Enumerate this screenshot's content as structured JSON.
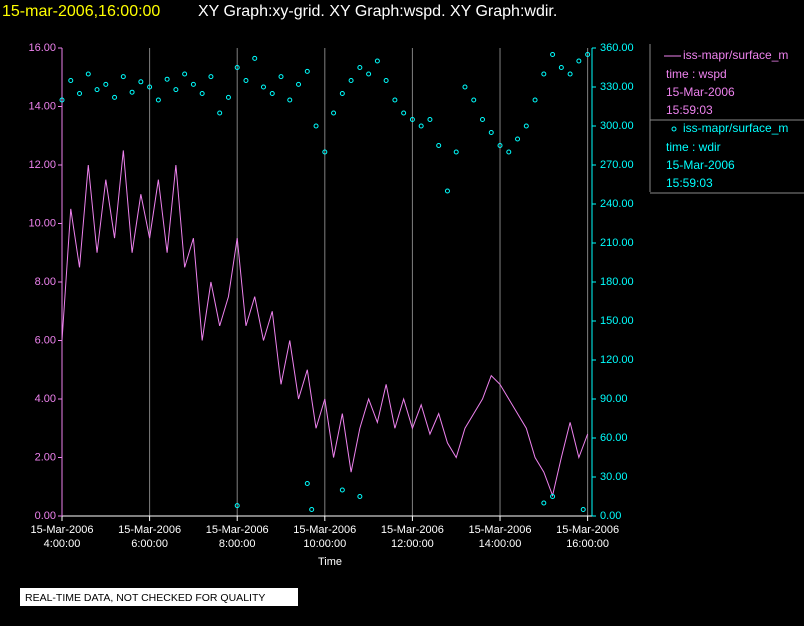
{
  "chart_data": {
    "type": "line+scatter",
    "header_date": "15-mar-2006,16:00:00",
    "title": "XY Graph:xy-grid.  XY Graph:wspd.  XY Graph:wdir.",
    "xlabel": "Time",
    "note": "REAL-TIME DATA, NOT CHECKED FOR QUALITY",
    "xlim": [
      4,
      16.1
    ],
    "xticks": [
      {
        "value": 4,
        "label": "15-Mar-2006\n4:00:00"
      },
      {
        "value": 6,
        "label": "15-Mar-2006\n6:00:00"
      },
      {
        "value": 8,
        "label": "15-Mar-2006\n8:00:00"
      },
      {
        "value": 10,
        "label": "15-Mar-2006\n10:00:00"
      },
      {
        "value": 12,
        "label": "15-Mar-2006\n12:00:00"
      },
      {
        "value": 14,
        "label": "15-Mar-2006\n14:00:00"
      },
      {
        "value": 16,
        "label": "15-Mar-2006\n16:00:00"
      }
    ],
    "ylim": [
      0,
      16
    ],
    "yticks": [
      {
        "value": 0,
        "label": "0.00"
      },
      {
        "value": 2,
        "label": "2.00"
      },
      {
        "value": 4,
        "label": "4.00"
      },
      {
        "value": 6,
        "label": "6.00"
      },
      {
        "value": 8,
        "label": "8.00"
      },
      {
        "value": 10,
        "label": "10.00"
      },
      {
        "value": 12,
        "label": "12.00"
      },
      {
        "value": 14,
        "label": "14.00"
      },
      {
        "value": 16,
        "label": "16.00"
      }
    ],
    "y2lim": [
      0,
      360
    ],
    "y2ticks": [
      {
        "value": 0,
        "label": "0.00"
      },
      {
        "value": 30,
        "label": "30.00"
      },
      {
        "value": 60,
        "label": "60.00"
      },
      {
        "value": 90,
        "label": "90.00"
      },
      {
        "value": 120,
        "label": "120.00"
      },
      {
        "value": 150,
        "label": "150.00"
      },
      {
        "value": 180,
        "label": "180.00"
      },
      {
        "value": 210,
        "label": "210.00"
      },
      {
        "value": 240,
        "label": "240.00"
      },
      {
        "value": 270,
        "label": "270.00"
      },
      {
        "value": 300,
        "label": "300.00"
      },
      {
        "value": 330,
        "label": "330.00"
      },
      {
        "value": 360,
        "label": "360.00"
      }
    ],
    "grid": true,
    "series": [
      {
        "name": "iss-mapr/surface_m",
        "legend_lines": [
          "time : wspd",
          "15-Mar-2006",
          "15:59:03"
        ],
        "kind": "line",
        "color": "#ee82ee",
        "x": [
          4.0,
          4.2,
          4.4,
          4.6,
          4.8,
          5.0,
          5.2,
          5.4,
          5.6,
          5.8,
          6.0,
          6.2,
          6.4,
          6.6,
          6.8,
          7.0,
          7.2,
          7.4,
          7.6,
          7.8,
          8.0,
          8.2,
          8.4,
          8.6,
          8.8,
          9.0,
          9.2,
          9.4,
          9.6,
          9.8,
          10.0,
          10.2,
          10.4,
          10.6,
          10.8,
          11.0,
          11.2,
          11.4,
          11.6,
          11.8,
          12.0,
          12.2,
          12.4,
          12.6,
          12.8,
          13.0,
          13.2,
          13.4,
          13.6,
          13.8,
          14.0,
          14.2,
          14.4,
          14.6,
          14.8,
          15.0,
          15.2,
          15.4,
          15.6,
          15.8,
          16.0
        ],
        "values": [
          6.0,
          10.5,
          8.5,
          12.0,
          9.0,
          11.5,
          9.5,
          12.5,
          9.0,
          11.0,
          9.5,
          11.5,
          9.0,
          12.0,
          8.5,
          9.5,
          6.0,
          8.0,
          6.5,
          7.5,
          9.5,
          6.5,
          7.5,
          6.0,
          7.0,
          4.5,
          6.0,
          4.0,
          5.0,
          3.0,
          4.0,
          2.0,
          3.5,
          1.5,
          3.0,
          4.0,
          3.2,
          4.5,
          3.0,
          4.0,
          3.0,
          3.8,
          2.8,
          3.5,
          2.5,
          2.0,
          3.0,
          3.5,
          4.0,
          4.8,
          4.5,
          4.0,
          3.5,
          3.0,
          2.0,
          1.5,
          0.7,
          2.0,
          3.2,
          2.0,
          2.8
        ]
      },
      {
        "name": "iss-mapr/surface_m",
        "legend_lines": [
          "time : wdir",
          "15-Mar-2006",
          "15:59:03"
        ],
        "kind": "scatter",
        "axis": "y2",
        "color": "#00ffff",
        "x": [
          4.0,
          4.2,
          4.4,
          4.6,
          4.8,
          5.0,
          5.2,
          5.4,
          5.6,
          5.8,
          6.0,
          6.2,
          6.4,
          6.6,
          6.8,
          7.0,
          7.2,
          7.4,
          7.6,
          7.8,
          8.0,
          8.2,
          8.4,
          8.6,
          8.8,
          9.0,
          9.2,
          9.4,
          9.6,
          9.8,
          10.0,
          10.2,
          10.4,
          10.6,
          10.8,
          11.0,
          11.2,
          11.4,
          11.6,
          11.8,
          12.0,
          12.2,
          12.4,
          12.6,
          12.8,
          13.0,
          13.2,
          13.4,
          13.6,
          13.8,
          14.0,
          14.2,
          14.4,
          14.6,
          14.8,
          15.0,
          15.2,
          15.4,
          15.6,
          15.8,
          16.0,
          8.0,
          9.6,
          9.7,
          10.4,
          10.8,
          15.0,
          15.2,
          15.9
        ],
        "values": [
          320,
          335,
          325,
          340,
          328,
          332,
          322,
          338,
          326,
          334,
          330,
          320,
          336,
          328,
          340,
          332,
          325,
          338,
          310,
          322,
          345,
          335,
          352,
          330,
          325,
          338,
          320,
          332,
          342,
          300,
          280,
          310,
          325,
          335,
          345,
          340,
          350,
          335,
          320,
          310,
          305,
          300,
          305,
          285,
          250,
          280,
          330,
          320,
          305,
          295,
          285,
          280,
          290,
          300,
          320,
          340,
          355,
          345,
          340,
          350,
          355,
          8,
          25,
          5,
          20,
          15,
          10,
          15,
          5
        ]
      }
    ]
  }
}
